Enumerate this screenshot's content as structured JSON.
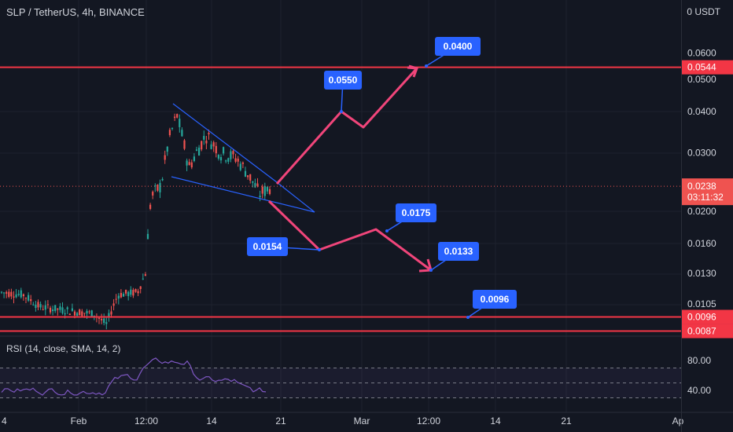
{
  "header": {
    "symbol_title": "SLP / TetherUS, 4h, BINANCE",
    "currency_label": "0 USDT"
  },
  "rsi_panel": {
    "title": "RSI (14, close, SMA, 14, 2)",
    "ticks": [
      "80.00",
      "40.00"
    ],
    "upper_band": 70,
    "lower_band": 30,
    "mid_band": 50
  },
  "colors": {
    "background": "#131722",
    "up": "#26a69a",
    "down": "#ef5350",
    "level_line": "#f23645",
    "projection": "#f0457a",
    "wedge": "#2962ff",
    "callout": "#2962ff",
    "rsi_line": "#7e57c2"
  },
  "chart_data": {
    "type": "candlestick",
    "title": "SLP / TetherUS, 4h, BINANCE",
    "y_axis": {
      "scale": "log",
      "tick_labels": [
        "0.0600",
        "0.0500",
        "0.0400",
        "0.0300",
        "0.0200",
        "0.0160",
        "0.0130",
        "0.0105"
      ],
      "range": [
        0.0084,
        0.11
      ]
    },
    "x_axis": {
      "tick_labels": [
        "4",
        "Feb",
        "12:00",
        "14",
        "21",
        "Mar",
        "12:00",
        "14",
        "21",
        "Ap"
      ]
    },
    "horizontal_levels": [
      {
        "value": 0.0544,
        "label": "0.0544"
      },
      {
        "value": 0.0096,
        "label": "0.0096"
      },
      {
        "value": 0.0087,
        "label": "0.0087"
      }
    ],
    "current_price": {
      "value": 0.0238,
      "label": "0.0238",
      "countdown": "03:11:32"
    },
    "annotations": [
      {
        "label": "0.0550",
        "value": 0.055
      },
      {
        "label": "0.0400",
        "value": 0.04
      },
      {
        "label": "0.0175",
        "value": 0.0175
      },
      {
        "label": "0.0154",
        "value": 0.0154
      },
      {
        "label": "0.0133",
        "value": 0.0133
      },
      {
        "label": "0.0096",
        "value": 0.0096
      }
    ]
  }
}
